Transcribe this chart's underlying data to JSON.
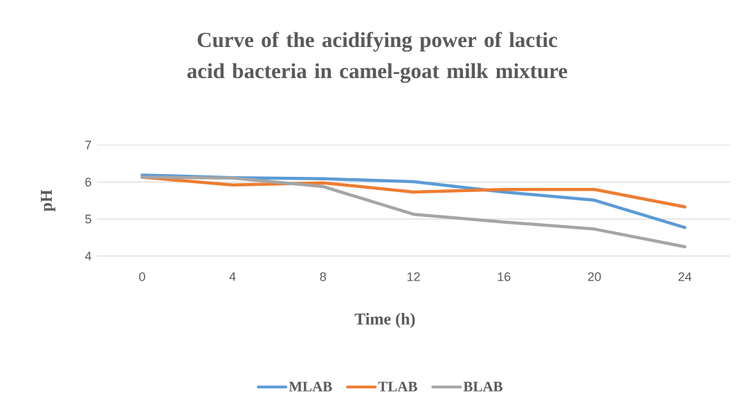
{
  "chart_data": {
    "type": "line",
    "title": "Curve of the acidifying power of lactic acid bacteria in camel-goat milk mixture",
    "xlabel": "Time  (h)",
    "ylabel": "pH",
    "categories": [
      "0",
      "4",
      "8",
      "12",
      "16",
      "20",
      "24"
    ],
    "series": [
      {
        "name": "MLAB",
        "color": "#5b9bd5",
        "values": [
          6.19,
          6.12,
          6.09,
          6.01,
          5.73,
          5.51,
          4.77
        ]
      },
      {
        "name": "TLAB",
        "color": "#ed7d31",
        "values": [
          6.13,
          5.92,
          5.98,
          5.73,
          5.8,
          5.8,
          5.33
        ]
      },
      {
        "name": "BLAB",
        "color": "#a5a5a5",
        "values": [
          6.13,
          6.11,
          5.88,
          5.13,
          4.92,
          4.73,
          4.25
        ]
      }
    ],
    "ylim": [
      4,
      7
    ],
    "yticks": [
      4,
      5,
      6,
      7
    ],
    "grid": "y",
    "legend": "bottom"
  }
}
